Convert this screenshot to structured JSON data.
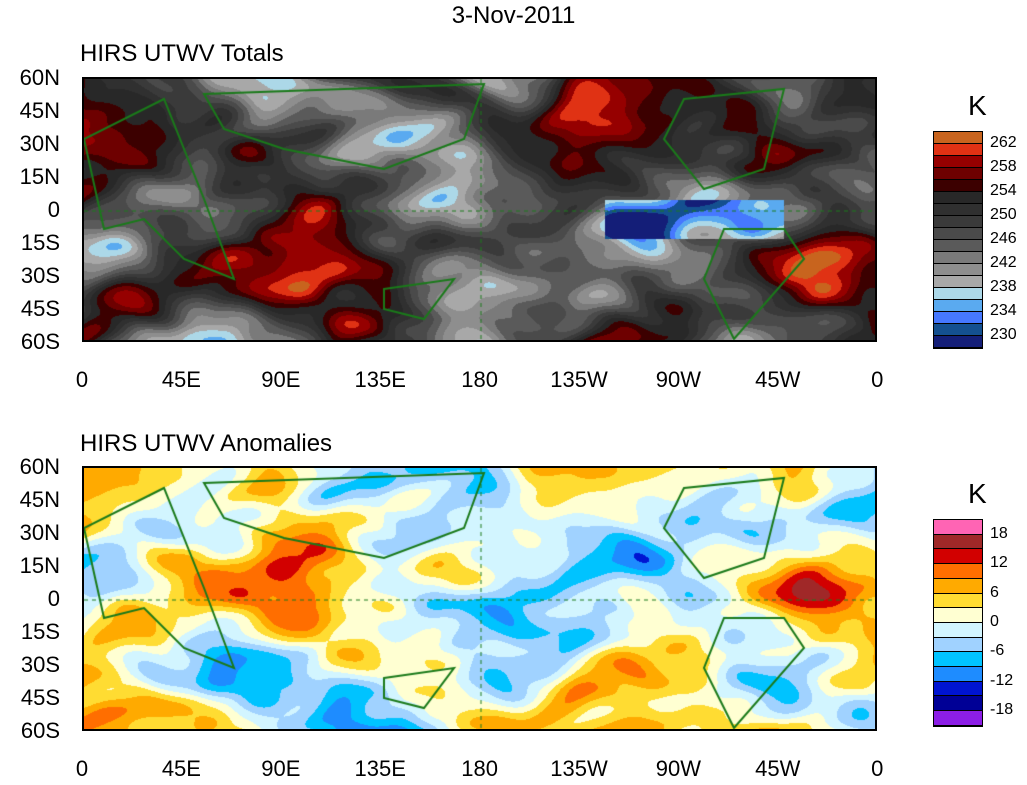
{
  "title": "3-Nov-2011",
  "panels": [
    {
      "title": "HIRS UTWV Totals",
      "unit": "K",
      "levels_labels": [
        "262",
        "258",
        "254",
        "250",
        "246",
        "242",
        "238",
        "234",
        "230"
      ],
      "colors": [
        "#c8641e",
        "#e03214",
        "#960000",
        "#6e0000",
        "#3c0000",
        "#282828",
        "#303030",
        "#3a3a3a",
        "#4a4a4a",
        "#5a5a5a",
        "#7a7a7a",
        "#8e8e8e",
        "#a8a8a8",
        "#acd8e8",
        "#5aaaf0",
        "#4678ff",
        "#145090",
        "#141e78"
      ]
    },
    {
      "title": "HIRS UTWV Anomalies",
      "unit": "K",
      "levels_labels": [
        "18",
        "12",
        "6",
        "0",
        "-6",
        "-12",
        "-18"
      ],
      "colors": [
        "#ff64b4",
        "#a02828",
        "#d20000",
        "#ff6e00",
        "#ffaa00",
        "#ffdc32",
        "#ffffd2",
        "#d2f5ff",
        "#a0d2ff",
        "#00c3ff",
        "#1e8cff",
        "#0014d2",
        "#000096",
        "#8c1ee6"
      ]
    }
  ],
  "y_ticks": [
    "60N",
    "45N",
    "30N",
    "15N",
    "0",
    "15S",
    "30S",
    "45S",
    "60S"
  ],
  "x_ticks": [
    "0",
    "45E",
    "90E",
    "135E",
    "180",
    "135W",
    "90W",
    "45W",
    "0"
  ]
}
